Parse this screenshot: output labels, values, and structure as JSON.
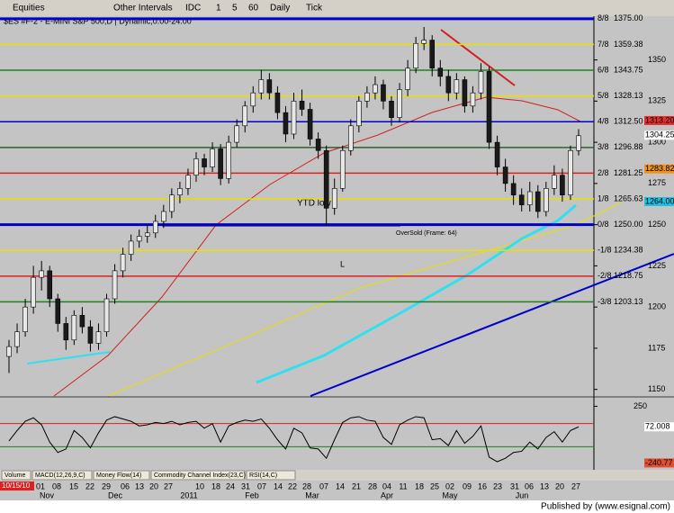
{
  "toolbar": {
    "items": [
      "Equities",
      "Other Intervals",
      "IDC",
      "1",
      "5",
      "60",
      "Daily",
      "Tick"
    ]
  },
  "chart_data": {
    "type": "candlestick",
    "title": "$ES #F-2 - E-MINI S&P 500,D | Dynamic,0.00-24.00",
    "open": [
      1170,
      1176,
      1185,
      1200,
      1218,
      1222,
      1205,
      1190,
      1180,
      1195,
      1188,
      1178,
      1185,
      1205,
      1222,
      1232,
      1240,
      1243,
      1245,
      1252,
      1258,
      1268,
      1272,
      1280,
      1290,
      1285,
      1296,
      1278,
      1300,
      1310,
      1322,
      1330,
      1338,
      1330,
      1318,
      1305,
      1325,
      1320,
      1302,
      1295,
      1260,
      1272,
      1295,
      1310,
      1325,
      1330,
      1335,
      1325,
      1315,
      1332,
      1345,
      1360,
      1362,
      1345,
      1340,
      1330,
      1338,
      1322,
      1330,
      1343,
      1300,
      1285,
      1275,
      1268,
      1262,
      1270,
      1258,
      1272,
      1280,
      1268,
      1295
    ],
    "high": [
      1180,
      1190,
      1205,
      1225,
      1228,
      1225,
      1208,
      1194,
      1198,
      1200,
      1192,
      1190,
      1208,
      1226,
      1236,
      1244,
      1247,
      1250,
      1256,
      1262,
      1272,
      1276,
      1284,
      1294,
      1293,
      1300,
      1299,
      1304,
      1314,
      1325,
      1334,
      1344,
      1342,
      1334,
      1322,
      1330,
      1332,
      1324,
      1306,
      1298,
      1278,
      1298,
      1314,
      1328,
      1334,
      1340,
      1338,
      1328,
      1336,
      1350,
      1364,
      1370,
      1365,
      1350,
      1344,
      1342,
      1340,
      1334,
      1348,
      1346,
      1304,
      1290,
      1280,
      1272,
      1276,
      1274,
      1276,
      1286,
      1284,
      1298,
      1308
    ],
    "low": [
      1160,
      1172,
      1182,
      1196,
      1210,
      1200,
      1185,
      1174,
      1177,
      1184,
      1173,
      1174,
      1182,
      1202,
      1218,
      1228,
      1236,
      1239,
      1242,
      1248,
      1254,
      1263,
      1268,
      1276,
      1280,
      1282,
      1274,
      1275,
      1297,
      1306,
      1318,
      1326,
      1326,
      1314,
      1300,
      1302,
      1316,
      1298,
      1290,
      1249,
      1256,
      1270,
      1292,
      1306,
      1321,
      1326,
      1320,
      1310,
      1312,
      1328,
      1342,
      1356,
      1340,
      1334,
      1325,
      1326,
      1318,
      1318,
      1326,
      1296,
      1280,
      1270,
      1262,
      1258,
      1258,
      1254,
      1255,
      1268,
      1264,
      1265,
      1292
    ],
    "close": [
      1176,
      1185,
      1200,
      1218,
      1222,
      1205,
      1190,
      1180,
      1195,
      1188,
      1178,
      1185,
      1205,
      1222,
      1232,
      1240,
      1243,
      1245,
      1252,
      1258,
      1268,
      1272,
      1280,
      1290,
      1285,
      1296,
      1278,
      1300,
      1310,
      1322,
      1330,
      1338,
      1330,
      1318,
      1305,
      1325,
      1320,
      1302,
      1295,
      1260,
      1272,
      1295,
      1310,
      1325,
      1330,
      1335,
      1325,
      1315,
      1332,
      1345,
      1360,
      1362,
      1345,
      1340,
      1330,
      1338,
      1322,
      1330,
      1343,
      1300,
      1285,
      1275,
      1268,
      1262,
      1270,
      1258,
      1272,
      1280,
      1268,
      1295,
      1304
    ],
    "up_color": "#e8e8e8",
    "down_color": "#1a1a1a",
    "ylim": [
      1146,
      1382
    ],
    "yticks": [
      1150,
      1175,
      1200,
      1225,
      1250,
      1275,
      1300,
      1325,
      1350
    ],
    "levels": [
      {
        "name": "8/8",
        "value": 1375,
        "label": "1375.00",
        "color": "#0000cc"
      },
      {
        "name": "7/8",
        "value": 1359.38,
        "label": "1359.38",
        "color": "#e8e000"
      },
      {
        "name": "6/8",
        "value": 1343.75,
        "label": "1343.75",
        "color": "#208020"
      },
      {
        "name": "5/8",
        "value": 1328.13,
        "label": "1328.13",
        "color": "#e8e000"
      },
      {
        "name": "4/8",
        "value": 1312.5,
        "label": "1312.50",
        "color": "#0000cc"
      },
      {
        "name": "3/8",
        "value": 1296.88,
        "label": "1296.88",
        "color": "#306030"
      },
      {
        "name": "2/8",
        "value": 1281.25,
        "label": "1281.25",
        "color": "#e02020"
      },
      {
        "name": "1/8",
        "value": 1265.63,
        "label": "1265.63",
        "color": "#e8e000"
      },
      {
        "name": "0/8",
        "value": 1250,
        "label": "1250.00",
        "color": "#0000cc"
      },
      {
        "name": "-1/8",
        "value": 1234.38,
        "label": "1234.38",
        "color": "#e8e000"
      },
      {
        "name": "-2/8",
        "value": 1218.75,
        "label": "1218.75",
        "color": "#e02020"
      },
      {
        "name": "-3/8",
        "value": 1203.13,
        "label": "1203.13",
        "color": "#208020"
      }
    ],
    "price_tags": [
      {
        "value": 1313.2,
        "label": "1313.20",
        "color": "#e03030"
      },
      {
        "value": 1304.25,
        "label": "1304.25",
        "color": "#ffffff"
      },
      {
        "value": 1283.82,
        "label": "1283.82",
        "color": "#f09020"
      },
      {
        "value": 1264,
        "label": "1264.00",
        "color": "#20c0e0"
      }
    ],
    "annotations": [
      "YTD low",
      "L",
      "OverSold (Frame: 64)"
    ],
    "date_labels": [
      "01",
      "08",
      "15",
      "22",
      "29",
      "06",
      "13",
      "20",
      "27",
      "10",
      "18",
      "24",
      "31",
      "07",
      "14",
      "22",
      "28",
      "07",
      "14",
      "21",
      "28",
      "04",
      "11",
      "18",
      "25",
      "02",
      "09",
      "16",
      "23",
      "31",
      "06",
      "13",
      "20",
      "27"
    ],
    "month_labels": [
      "Nov",
      "Dec",
      "2011",
      "Feb",
      "Mar",
      "Apr",
      "May",
      "Jun"
    ],
    "start_date": "10/15/10",
    "indicator": {
      "values": [
        -50,
        40,
        120,
        150,
        90,
        -60,
        -150,
        -120,
        40,
        -20,
        -110,
        20,
        130,
        160,
        140,
        120,
        80,
        90,
        110,
        100,
        120,
        90,
        110,
        120,
        60,
        100,
        -60,
        80,
        110,
        130,
        120,
        140,
        60,
        -40,
        -120,
        60,
        20,
        -110,
        -120,
        -200,
        -40,
        110,
        150,
        160,
        130,
        120,
        -20,
        -80,
        90,
        130,
        160,
        150,
        -40,
        -30,
        -90,
        40,
        -70,
        -10,
        80,
        -190,
        -230,
        -200,
        -150,
        -140,
        -60,
        -120,
        -20,
        30,
        -60,
        40,
        72
      ],
      "color": "#000000",
      "ylim": [
        -300,
        300
      ],
      "yticks": [
        250
      ],
      "ref_lines": [
        {
          "value": 100,
          "color": "#e02020"
        },
        {
          "value": -100,
          "color": "#208020"
        }
      ],
      "tags": [
        {
          "value": 72.008,
          "label": "72.008",
          "color": "#ffffff"
        },
        {
          "value": -240.77,
          "label": "-240.77",
          "color": "#e05030"
        }
      ]
    },
    "tabs": [
      "Volume",
      "MACD(12,26,9,C)",
      "Money Flow(14)",
      "Commodity Channel Index(23,C)",
      "RSI(14,C)"
    ]
  },
  "footer": "Published by (www.esignal.com)"
}
